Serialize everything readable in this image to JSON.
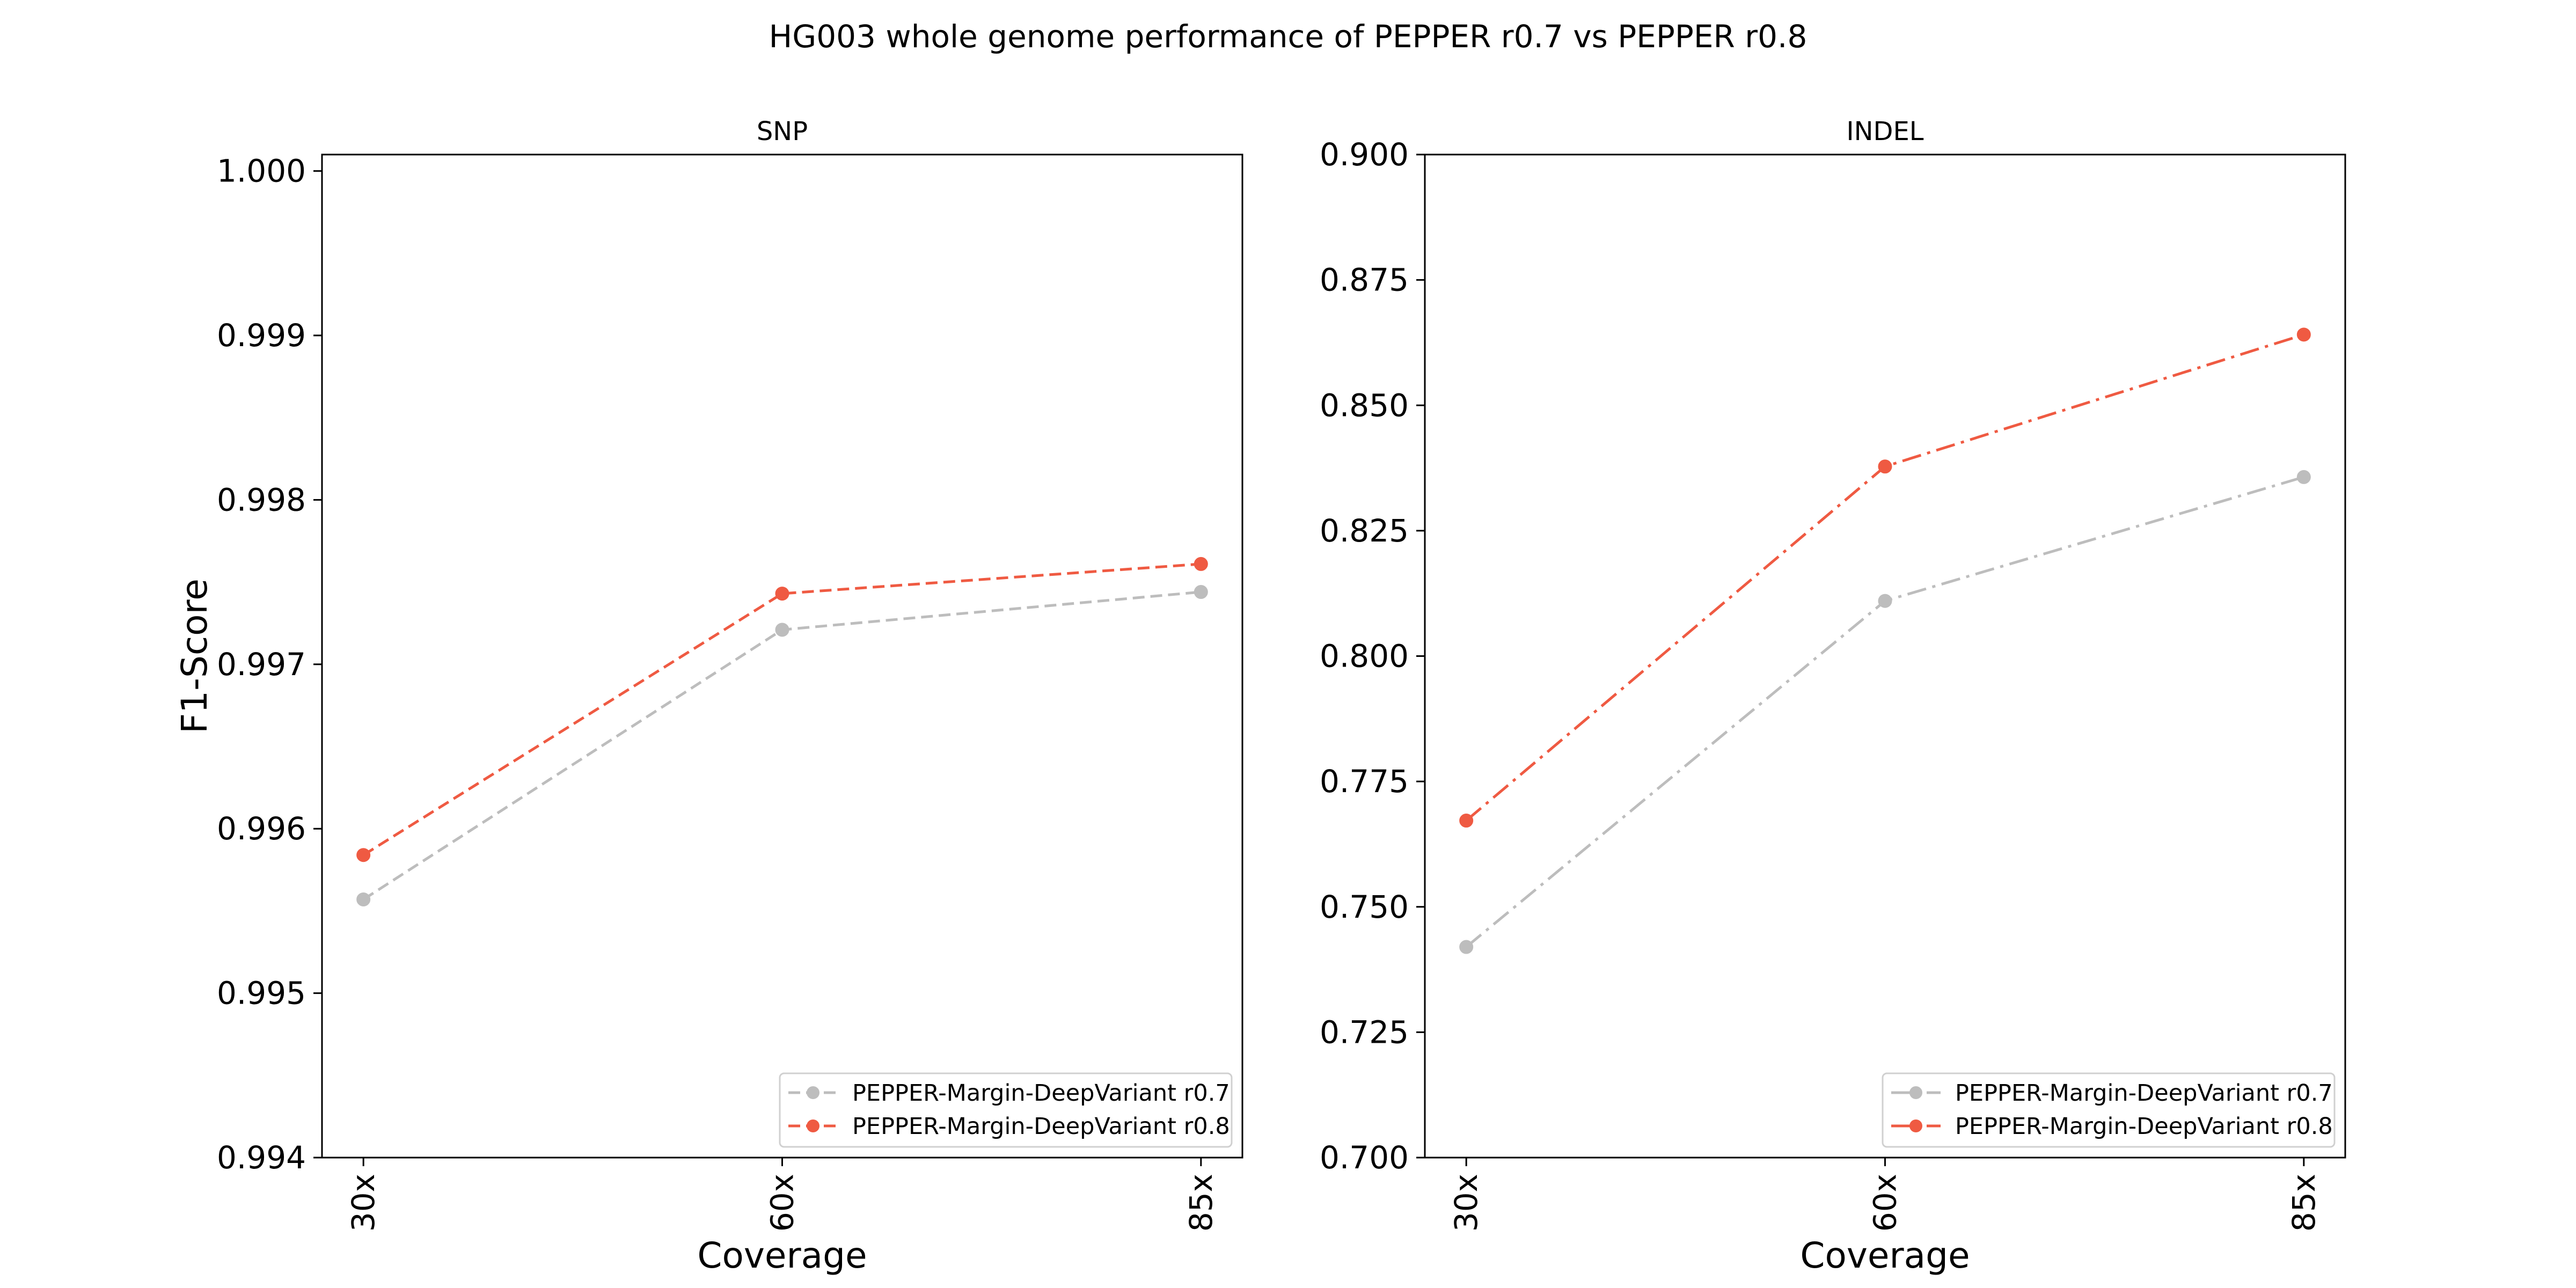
{
  "suptitle": "HG003 whole genome performance of PEPPER r0.7 vs PEPPER r0.8",
  "colors": {
    "r07": "#bdbdbd",
    "r08": "#ef5a42",
    "axes": "#000000",
    "background": "#ffffff"
  },
  "chart_data": [
    {
      "type": "line",
      "title": "SNP",
      "xlabel": "Coverage",
      "ylabel": "F1-Score",
      "categories": [
        "30x",
        "60x",
        "85x"
      ],
      "ylim": [
        0.994,
        1.0001
      ],
      "yticks": [
        0.994,
        0.995,
        0.996,
        0.997,
        0.998,
        0.999,
        1.0
      ],
      "ytick_labels": [
        "0.994",
        "0.995",
        "0.996",
        "0.997",
        "0.998",
        "0.999",
        "1.000"
      ],
      "grid": false,
      "legend_position": "lower-right",
      "line_style": "dashed",
      "series": [
        {
          "name": "PEPPER-Margin-DeepVariant r0.7",
          "color": "#bdbdbd",
          "values": [
            0.99557,
            0.99721,
            0.99744
          ]
        },
        {
          "name": "PEPPER-Margin-DeepVariant r0.8",
          "color": "#ef5a42",
          "values": [
            0.99584,
            0.99743,
            0.99761
          ]
        }
      ]
    },
    {
      "type": "line",
      "title": "INDEL",
      "xlabel": "Coverage",
      "ylabel": "",
      "categories": [
        "30x",
        "60x",
        "85x"
      ],
      "ylim": [
        0.7,
        0.9
      ],
      "yticks": [
        0.7,
        0.725,
        0.75,
        0.775,
        0.8,
        0.825,
        0.85,
        0.875,
        0.9
      ],
      "ytick_labels": [
        "0.700",
        "0.725",
        "0.750",
        "0.775",
        "0.800",
        "0.825",
        "0.850",
        "0.875",
        "0.900"
      ],
      "grid": false,
      "legend_position": "lower-right",
      "line_style": "dashdot",
      "series": [
        {
          "name": "PEPPER-Margin-DeepVariant r0.7",
          "color": "#bdbdbd",
          "values": [
            0.742,
            0.811,
            0.8357
          ]
        },
        {
          "name": "PEPPER-Margin-DeepVariant r0.8",
          "color": "#ef5a42",
          "values": [
            0.7672,
            0.8378,
            0.8641
          ]
        }
      ]
    }
  ]
}
